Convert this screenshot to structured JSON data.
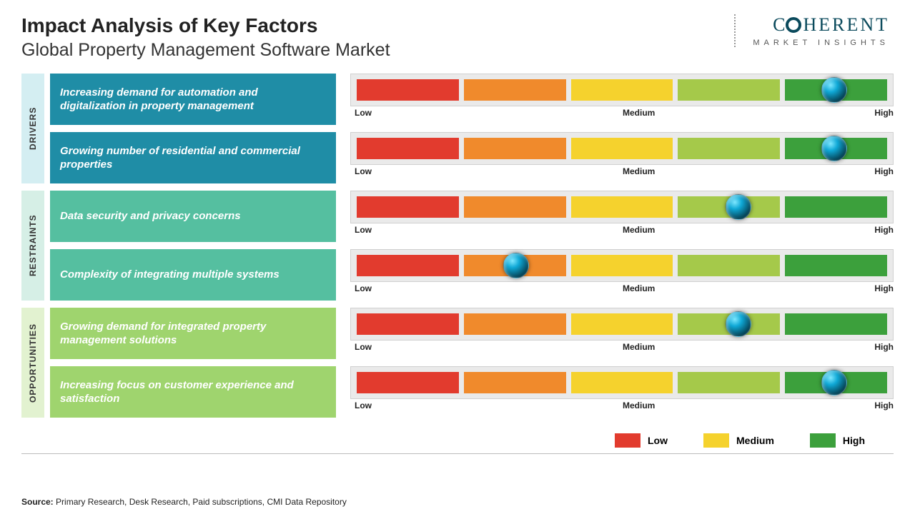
{
  "title": "Impact Analysis of Key Factors",
  "subtitle": "Global Property Management Software Market",
  "logo": {
    "main_pre": "C",
    "main_post": "HERENT",
    "sub": "MARKET INSIGHTS",
    "color": "#0b4a5c"
  },
  "scale": {
    "labels": {
      "low": "Low",
      "medium": "Medium",
      "high": "High"
    },
    "segment_colors": [
      "#e23b2e",
      "#f08a2c",
      "#f5d22d",
      "#a5c94a",
      "#3ca03c"
    ],
    "track_bg": "#eaeaea",
    "track_border": "#d0d0d0"
  },
  "categories": [
    {
      "label": "DRIVERS",
      "cat_bg": "#d4eef2",
      "box_bg": "#1f8da6",
      "items": [
        {
          "text": "Increasing demand for automation and digitalization in property management",
          "marker_pct": 90
        },
        {
          "text": "Growing number of residential and commercial properties",
          "marker_pct": 90
        }
      ]
    },
    {
      "label": "RESTRAINTS",
      "cat_bg": "#d6efe6",
      "box_bg": "#55bfa0",
      "items": [
        {
          "text": "Data security and privacy concerns",
          "marker_pct": 72
        },
        {
          "text": "Complexity of integrating multiple systems",
          "marker_pct": 30
        }
      ]
    },
    {
      "label": "OPPORTUNITIES",
      "cat_bg": "#e2f2d0",
      "box_bg": "#9fd46e",
      "items": [
        {
          "text": "Growing demand for integrated property management solutions",
          "marker_pct": 72
        },
        {
          "text": "Increasing focus on customer experience and satisfaction",
          "marker_pct": 90
        }
      ]
    }
  ],
  "legend": [
    {
      "label": "Low",
      "color": "#e23b2e"
    },
    {
      "label": "Medium",
      "color": "#f5d22d"
    },
    {
      "label": "High",
      "color": "#3ca03c"
    }
  ],
  "source": {
    "label": "Source:",
    "text": "Primary Research, Desk Research, Paid subscriptions, CMI Data Repository"
  }
}
